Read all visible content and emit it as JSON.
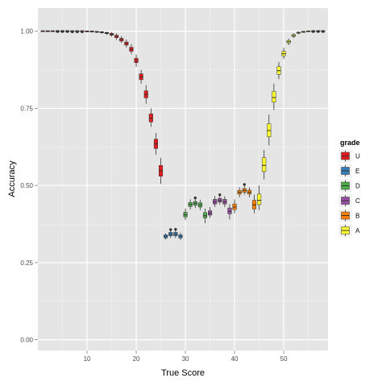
{
  "chart_data": {
    "type": "boxplot",
    "title": "",
    "xlabel": "True Score",
    "ylabel": "Accuracy",
    "xlim": [
      0,
      59
    ],
    "ylim": [
      -0.035,
      1.075
    ],
    "x_ticks": [
      10,
      20,
      30,
      40,
      50
    ],
    "y_ticks": [
      0.0,
      0.25,
      0.5,
      0.75,
      1.0
    ],
    "x_tick_labels": [
      "10",
      "20",
      "30",
      "40",
      "50"
    ],
    "y_tick_labels": [
      "0.00",
      "0.25",
      "0.50",
      "0.75",
      "1.00"
    ],
    "x_minor_ticks": [
      5,
      15,
      25,
      35,
      45,
      55
    ],
    "y_minor_ticks": [
      0.125,
      0.375,
      0.625,
      0.875
    ],
    "grid": true,
    "background": "#e5e5e5",
    "legend": {
      "title": "grade",
      "placement": "right",
      "entries": [
        {
          "label": "U",
          "color": "#e41a1c"
        },
        {
          "label": "E",
          "color": "#377eb8"
        },
        {
          "label": "D",
          "color": "#4daf4a"
        },
        {
          "label": "C",
          "color": "#984ea3"
        },
        {
          "label": "B",
          "color": "#ff7f00"
        },
        {
          "label": "A",
          "color": "#ffff33"
        }
      ]
    },
    "boxes": [
      {
        "x": 1,
        "grade": "U",
        "wlo": 1.0,
        "q1": 1.0,
        "med": 1.0,
        "q3": 1.0,
        "whi": 1.0,
        "out": []
      },
      {
        "x": 2,
        "grade": "U",
        "wlo": 1.0,
        "q1": 1.0,
        "med": 1.0,
        "q3": 1.0,
        "whi": 1.0,
        "out": []
      },
      {
        "x": 3,
        "grade": "U",
        "wlo": 1.0,
        "q1": 1.0,
        "med": 1.0,
        "q3": 1.0,
        "whi": 1.0,
        "out": []
      },
      {
        "x": 4,
        "grade": "U",
        "wlo": 1.0,
        "q1": 1.0,
        "med": 1.0,
        "q3": 1.0,
        "whi": 1.0,
        "out": [
          0.999
        ]
      },
      {
        "x": 5,
        "grade": "U",
        "wlo": 1.0,
        "q1": 1.0,
        "med": 1.0,
        "q3": 1.0,
        "whi": 1.0,
        "out": [
          0.999
        ]
      },
      {
        "x": 6,
        "grade": "U",
        "wlo": 1.0,
        "q1": 1.0,
        "med": 1.0,
        "q3": 1.0,
        "whi": 1.0,
        "out": [
          0.999
        ]
      },
      {
        "x": 7,
        "grade": "U",
        "wlo": 1.0,
        "q1": 1.0,
        "med": 1.0,
        "q3": 1.0,
        "whi": 1.0,
        "out": [
          0.998
        ]
      },
      {
        "x": 8,
        "grade": "U",
        "wlo": 1.0,
        "q1": 1.0,
        "med": 1.0,
        "q3": 1.0,
        "whi": 1.0,
        "out": [
          0.998
        ]
      },
      {
        "x": 9,
        "grade": "U",
        "wlo": 1.0,
        "q1": 1.0,
        "med": 1.0,
        "q3": 1.0,
        "whi": 1.0,
        "out": [
          0.998
        ]
      },
      {
        "x": 10,
        "grade": "U",
        "wlo": 0.997,
        "q1": 0.999,
        "med": 1.0,
        "q3": 1.0,
        "whi": 1.0,
        "out": []
      },
      {
        "x": 11,
        "grade": "U",
        "wlo": 0.996,
        "q1": 0.998,
        "med": 0.999,
        "q3": 1.0,
        "whi": 1.0,
        "out": []
      },
      {
        "x": 12,
        "grade": "U",
        "wlo": 0.994,
        "q1": 0.997,
        "med": 0.998,
        "q3": 0.999,
        "whi": 1.0,
        "out": []
      },
      {
        "x": 13,
        "grade": "U",
        "wlo": 0.992,
        "q1": 0.995,
        "med": 0.997,
        "q3": 0.998,
        "whi": 1.0,
        "out": []
      },
      {
        "x": 14,
        "grade": "U",
        "wlo": 0.988,
        "q1": 0.992,
        "med": 0.994,
        "q3": 0.996,
        "whi": 0.999,
        "out": []
      },
      {
        "x": 15,
        "grade": "U",
        "wlo": 0.982,
        "q1": 0.987,
        "med": 0.99,
        "q3": 0.993,
        "whi": 0.997,
        "out": []
      },
      {
        "x": 16,
        "grade": "U",
        "wlo": 0.972,
        "q1": 0.979,
        "med": 0.983,
        "q3": 0.987,
        "whi": 0.993,
        "out": []
      },
      {
        "x": 17,
        "grade": "U",
        "wlo": 0.962,
        "q1": 0.968,
        "med": 0.973,
        "q3": 0.977,
        "whi": 0.984,
        "out": []
      },
      {
        "x": 18,
        "grade": "U",
        "wlo": 0.947,
        "q1": 0.955,
        "med": 0.96,
        "q3": 0.965,
        "whi": 0.973,
        "out": []
      },
      {
        "x": 19,
        "grade": "U",
        "wlo": 0.925,
        "q1": 0.935,
        "med": 0.941,
        "q3": 0.948,
        "whi": 0.958,
        "out": []
      },
      {
        "x": 20,
        "grade": "U",
        "wlo": 0.885,
        "q1": 0.898,
        "med": 0.905,
        "q3": 0.912,
        "whi": 0.924,
        "out": []
      },
      {
        "x": 21,
        "grade": "U",
        "wlo": 0.83,
        "q1": 0.843,
        "med": 0.852,
        "q3": 0.862,
        "whi": 0.875,
        "out": []
      },
      {
        "x": 22,
        "grade": "U",
        "wlo": 0.765,
        "q1": 0.784,
        "med": 0.795,
        "q3": 0.807,
        "whi": 0.825,
        "out": []
      },
      {
        "x": 23,
        "grade": "U",
        "wlo": 0.69,
        "q1": 0.706,
        "med": 0.718,
        "q3": 0.732,
        "whi": 0.75,
        "out": []
      },
      {
        "x": 24,
        "grade": "U",
        "wlo": 0.6,
        "q1": 0.62,
        "med": 0.635,
        "q3": 0.65,
        "whi": 0.67,
        "out": []
      },
      {
        "x": 25,
        "grade": "U",
        "wlo": 0.505,
        "q1": 0.53,
        "med": 0.548,
        "q3": 0.565,
        "whi": 0.59,
        "out": []
      },
      {
        "x": 26,
        "grade": "E",
        "wlo": 0.325,
        "q1": 0.33,
        "med": 0.335,
        "q3": 0.34,
        "whi": 0.345,
        "out": []
      },
      {
        "x": 27,
        "grade": "E",
        "wlo": 0.33,
        "q1": 0.337,
        "med": 0.342,
        "q3": 0.348,
        "whi": 0.354,
        "out": [
          0.357
        ]
      },
      {
        "x": 28,
        "grade": "E",
        "wlo": 0.33,
        "q1": 0.337,
        "med": 0.342,
        "q3": 0.348,
        "whi": 0.354,
        "out": [
          0.358
        ]
      },
      {
        "x": 29,
        "grade": "E",
        "wlo": 0.323,
        "q1": 0.33,
        "med": 0.335,
        "q3": 0.34,
        "whi": 0.347,
        "out": []
      },
      {
        "x": 30,
        "grade": "D",
        "wlo": 0.388,
        "q1": 0.398,
        "med": 0.405,
        "q3": 0.413,
        "whi": 0.425,
        "out": []
      },
      {
        "x": 31,
        "grade": "D",
        "wlo": 0.422,
        "q1": 0.432,
        "med": 0.438,
        "q3": 0.445,
        "whi": 0.455,
        "out": []
      },
      {
        "x": 32,
        "grade": "D",
        "wlo": 0.427,
        "q1": 0.436,
        "med": 0.442,
        "q3": 0.448,
        "whi": 0.456,
        "out": [
          0.46
        ]
      },
      {
        "x": 33,
        "grade": "D",
        "wlo": 0.42,
        "q1": 0.43,
        "med": 0.437,
        "q3": 0.444,
        "whi": 0.454,
        "out": []
      },
      {
        "x": 34,
        "grade": "D",
        "wlo": 0.378,
        "q1": 0.395,
        "med": 0.402,
        "q3": 0.412,
        "whi": 0.425,
        "out": []
      },
      {
        "x": 35,
        "grade": "C",
        "wlo": 0.395,
        "q1": 0.404,
        "med": 0.41,
        "q3": 0.418,
        "whi": 0.43,
        "out": []
      },
      {
        "x": 36,
        "grade": "C",
        "wlo": 0.43,
        "q1": 0.44,
        "med": 0.447,
        "q3": 0.455,
        "whi": 0.466,
        "out": []
      },
      {
        "x": 37,
        "grade": "C",
        "wlo": 0.438,
        "q1": 0.446,
        "med": 0.452,
        "q3": 0.458,
        "whi": 0.466,
        "out": [
          0.47
        ]
      },
      {
        "x": 38,
        "grade": "C",
        "wlo": 0.43,
        "q1": 0.44,
        "med": 0.447,
        "q3": 0.455,
        "whi": 0.465,
        "out": []
      },
      {
        "x": 39,
        "grade": "C",
        "wlo": 0.39,
        "q1": 0.408,
        "med": 0.416,
        "q3": 0.427,
        "whi": 0.44,
        "out": []
      },
      {
        "x": 40,
        "grade": "B",
        "wlo": 0.41,
        "q1": 0.422,
        "med": 0.43,
        "q3": 0.44,
        "whi": 0.455,
        "out": []
      },
      {
        "x": 41,
        "grade": "B",
        "wlo": 0.462,
        "q1": 0.472,
        "med": 0.478,
        "q3": 0.484,
        "whi": 0.494,
        "out": []
      },
      {
        "x": 42,
        "grade": "B",
        "wlo": 0.47,
        "q1": 0.478,
        "med": 0.484,
        "q3": 0.49,
        "whi": 0.497,
        "out": [
          0.503
        ]
      },
      {
        "x": 43,
        "grade": "B",
        "wlo": 0.462,
        "q1": 0.472,
        "med": 0.478,
        "q3": 0.485,
        "whi": 0.494,
        "out": []
      },
      {
        "x": 44,
        "grade": "B",
        "wlo": 0.41,
        "q1": 0.424,
        "med": 0.437,
        "q3": 0.452,
        "whi": 0.47,
        "out": []
      },
      {
        "x": 45,
        "grade": "A",
        "wlo": 0.42,
        "q1": 0.438,
        "med": 0.452,
        "q3": 0.472,
        "whi": 0.5,
        "out": []
      },
      {
        "x": 46,
        "grade": "A",
        "wlo": 0.52,
        "q1": 0.545,
        "med": 0.565,
        "q3": 0.59,
        "whi": 0.615,
        "out": []
      },
      {
        "x": 47,
        "grade": "A",
        "wlo": 0.63,
        "q1": 0.658,
        "med": 0.678,
        "q3": 0.7,
        "whi": 0.73,
        "out": []
      },
      {
        "x": 48,
        "grade": "A",
        "wlo": 0.745,
        "q1": 0.77,
        "med": 0.785,
        "q3": 0.805,
        "whi": 0.83,
        "out": []
      },
      {
        "x": 49,
        "grade": "A",
        "wlo": 0.845,
        "q1": 0.86,
        "med": 0.872,
        "q3": 0.885,
        "whi": 0.9,
        "out": []
      },
      {
        "x": 50,
        "grade": "A",
        "wlo": 0.91,
        "q1": 0.92,
        "med": 0.927,
        "q3": 0.935,
        "whi": 0.946,
        "out": []
      },
      {
        "x": 51,
        "grade": "A",
        "wlo": 0.955,
        "q1": 0.962,
        "med": 0.966,
        "q3": 0.97,
        "whi": 0.976,
        "out": []
      },
      {
        "x": 52,
        "grade": "A",
        "wlo": 0.978,
        "q1": 0.983,
        "med": 0.986,
        "q3": 0.989,
        "whi": 0.993,
        "out": []
      },
      {
        "x": 53,
        "grade": "A",
        "wlo": 0.99,
        "q1": 0.993,
        "med": 0.995,
        "q3": 0.997,
        "whi": 0.999,
        "out": []
      },
      {
        "x": 54,
        "grade": "A",
        "wlo": 0.995,
        "q1": 0.997,
        "med": 0.998,
        "q3": 0.999,
        "whi": 1.0,
        "out": []
      },
      {
        "x": 55,
        "grade": "A",
        "wlo": 0.998,
        "q1": 0.999,
        "med": 1.0,
        "q3": 1.0,
        "whi": 1.0,
        "out": []
      },
      {
        "x": 56,
        "grade": "A",
        "wlo": 1.0,
        "q1": 1.0,
        "med": 1.0,
        "q3": 1.0,
        "whi": 1.0,
        "out": [
          0.999
        ]
      },
      {
        "x": 57,
        "grade": "A",
        "wlo": 1.0,
        "q1": 1.0,
        "med": 1.0,
        "q3": 1.0,
        "whi": 1.0,
        "out": [
          0.999
        ]
      },
      {
        "x": 58,
        "grade": "A",
        "wlo": 1.0,
        "q1": 1.0,
        "med": 1.0,
        "q3": 1.0,
        "whi": 1.0,
        "out": [
          0.999
        ]
      }
    ]
  }
}
